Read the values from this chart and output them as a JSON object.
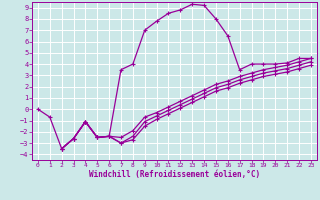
{
  "bg_color": "#cce8e8",
  "grid_color": "#ffffff",
  "line_color": "#990099",
  "xlim": [
    -0.5,
    23.5
  ],
  "ylim": [
    -4.5,
    9.5
  ],
  "xticks": [
    0,
    1,
    2,
    3,
    4,
    5,
    6,
    7,
    8,
    9,
    10,
    11,
    12,
    13,
    14,
    15,
    16,
    17,
    18,
    19,
    20,
    21,
    22,
    23
  ],
  "yticks": [
    -4,
    -3,
    -2,
    -1,
    0,
    1,
    2,
    3,
    4,
    5,
    6,
    7,
    8,
    9
  ],
  "xlabel": "Windchill (Refroidissement éolien,°C)",
  "c1x": [
    0,
    1,
    2,
    3,
    4,
    5,
    6,
    7,
    8,
    9,
    10,
    11,
    12,
    13,
    14,
    15,
    16,
    17,
    18,
    19,
    20,
    21,
    22,
    23
  ],
  "c1y": [
    0,
    -0.7,
    -3.5,
    -2.6,
    -1.1,
    -2.5,
    -2.4,
    3.5,
    4.0,
    7.0,
    7.8,
    8.5,
    8.8,
    9.3,
    9.2,
    8.0,
    6.5,
    3.5,
    4.0,
    4.0,
    4.0,
    4.1,
    4.5,
    4.5
  ],
  "c2x": [
    2,
    3,
    4,
    5,
    6,
    7,
    8,
    9,
    10,
    11,
    12,
    13,
    14,
    15,
    16,
    17,
    18,
    19,
    20,
    21,
    22,
    23
  ],
  "c2y": [
    -3.5,
    -2.6,
    -1.1,
    -2.5,
    -2.4,
    -3.0,
    -2.7,
    -1.5,
    -0.9,
    -0.4,
    0.1,
    0.6,
    1.1,
    1.6,
    1.9,
    2.3,
    2.6,
    2.9,
    3.1,
    3.3,
    3.6,
    3.9
  ],
  "c3x": [
    2,
    3,
    4,
    5,
    6,
    7,
    8,
    9,
    10,
    11,
    12,
    13,
    14,
    15,
    16,
    17,
    18,
    19,
    20,
    21,
    22,
    23
  ],
  "c3y": [
    -3.5,
    -2.6,
    -1.1,
    -2.5,
    -2.4,
    -3.0,
    -2.4,
    -1.1,
    -0.6,
    -0.1,
    0.4,
    0.9,
    1.4,
    1.9,
    2.2,
    2.6,
    2.9,
    3.2,
    3.4,
    3.6,
    3.9,
    4.2
  ],
  "c4x": [
    2,
    3,
    4,
    5,
    6,
    7,
    8,
    9,
    10,
    11,
    12,
    13,
    14,
    15,
    16,
    17,
    18,
    19,
    20,
    21,
    22,
    23
  ],
  "c4y": [
    -3.5,
    -2.6,
    -1.1,
    -2.5,
    -2.4,
    -2.5,
    -1.9,
    -0.7,
    -0.3,
    0.2,
    0.7,
    1.2,
    1.7,
    2.2,
    2.5,
    2.9,
    3.2,
    3.5,
    3.7,
    3.9,
    4.2,
    4.5
  ]
}
